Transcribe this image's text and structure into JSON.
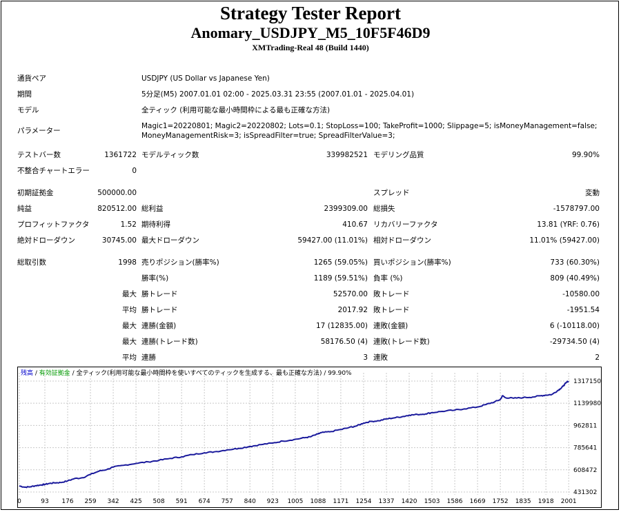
{
  "header": {
    "title": "Strategy Tester Report",
    "ea_name": "Anomary_USDJPY_M5_10F5F46D9",
    "server": "XMTrading-Real 48 (Build 1440)"
  },
  "info": {
    "symbol_label": "通貨ペア",
    "symbol_value": "USDJPY (US Dollar vs Japanese Yen)",
    "period_label": "期間",
    "period_value": "5分足(M5) 2007.01.01 02:00 - 2025.03.31 23:55 (2007.01.01 - 2025.04.01)",
    "model_label": "モデル",
    "model_value": "全ティック (利用可能な最小時間枠による最も正確な方法)",
    "params_label": "パラメーター",
    "params_line1": "Magic1=20220801; Magic2=20220802; Lots=0.1; StopLoss=100; TakeProfit=1000; Slippage=5; isMoneyManagement=false;",
    "params_line2": "MoneyManagementRisk=3; isSpreadFilter=true; SpreadFilterValue=3;"
  },
  "stats": {
    "bars_label": "テストバー数",
    "bars_value": "1361722",
    "ticks_label": "モデルティック数",
    "ticks_value": "339982521",
    "quality_label": "モデリング品質",
    "quality_value": "99.90%",
    "mismatch_label": "不整合チャートエラー",
    "mismatch_value": "0",
    "deposit_label": "初期証拠金",
    "deposit_value": "500000.00",
    "spread_label": "スプレッド",
    "spread_value": "変動",
    "netprofit_label": "純益",
    "netprofit_value": "820512.00",
    "grossprofit_label": "総利益",
    "grossprofit_value": "2399309.00",
    "grossloss_label": "総損失",
    "grossloss_value": "-1578797.00",
    "pf_label": "プロフィットファクタ",
    "pf_value": "1.52",
    "payoff_label": "期待利得",
    "payoff_value": "410.67",
    "recovery_label": "リカバリーファクタ",
    "recovery_value": "13.81 (YRF: 0.76)",
    "absdd_label": "絶対ドローダウン",
    "absdd_value": "30745.00",
    "maxdd_label": "最大ドローダウン",
    "maxdd_value": "59427.00 (11.01%)",
    "reldd_label": "相対ドローダウン",
    "reldd_value": "11.01% (59427.00)",
    "trades_label": "総取引数",
    "trades_value": "1998",
    "short_label": "売りポジション(勝率%)",
    "short_value": "1265 (59.05%)",
    "long_label": "買いポジション(勝率%)",
    "long_value": "733 (60.30%)",
    "winrate_label": "勝率(%)",
    "winrate_value": "1189 (59.51%)",
    "lossrate_label": "負率 (%)",
    "lossrate_value": "809 (40.49%)",
    "max_label": "最大",
    "avg_label": "平均",
    "largest_win_label": "勝トレード",
    "largest_win_value": "52570.00",
    "largest_loss_label": "敗トレード",
    "largest_loss_value": "-10580.00",
    "avg_win_label": "勝トレード",
    "avg_win_value": "2017.92",
    "avg_loss_label": "敗トレード",
    "avg_loss_value": "-1951.54",
    "cons_wins_money_label": "連勝(金額)",
    "cons_wins_money_value": "17 (12835.00)",
    "cons_loss_money_label": "連敗(金額)",
    "cons_loss_money_value": "6 (-10118.00)",
    "cons_profit_label": "連勝(トレード数)",
    "cons_profit_value": "58176.50 (4)",
    "cons_loss_label": "連敗(トレード数)",
    "cons_loss_value": "-29734.50 (4)",
    "avg_cons_wins_label": "連勝",
    "avg_cons_wins_value": "3",
    "avg_cons_loss_label": "連敗",
    "avg_cons_loss_value": "2"
  },
  "chart_legend": {
    "balance": "残高",
    "sep1": " / ",
    "equity": "有効証拠金",
    "sep2": " / ",
    "model": "全ティック(利用可能な最小時間枠を使いすべてのティックを生成する、最も正確な方法)",
    "quality": " / 99.90%"
  },
  "colors": {
    "balance_line": "#1a1a9c",
    "grid": "#c8c8c8",
    "equity_legend": "#009900",
    "balance_legend": "#0000cc"
  },
  "chart_data": {
    "type": "line",
    "x_ticks": [
      "0",
      "93",
      "176",
      "259",
      "342",
      "425",
      "508",
      "591",
      "674",
      "757",
      "840",
      "923",
      "1005",
      "1088",
      "1171",
      "1254",
      "1337",
      "1420",
      "1503",
      "1586",
      "1669",
      "1752",
      "1835",
      "1918",
      "2001"
    ],
    "y_ticks": [
      "1317150",
      "1139980",
      "962811",
      "785641",
      "608472",
      "431302"
    ],
    "xlim": [
      0,
      2003
    ],
    "ylim": [
      431302,
      1339000
    ],
    "grid": true,
    "series": [
      {
        "name": "残高",
        "x": [
          0,
          20,
          40,
          60,
          80,
          93,
          110,
          130,
          150,
          176,
          200,
          230,
          259,
          290,
          320,
          342,
          380,
          425,
          470,
          508,
          550,
          591,
          630,
          674,
          710,
          757,
          800,
          840,
          880,
          923,
          960,
          1000,
          1040,
          1060,
          1088,
          1100,
          1130,
          1171,
          1200,
          1230,
          1254,
          1280,
          1310,
          1337,
          1370,
          1400,
          1420,
          1450,
          1480,
          1503,
          1540,
          1586,
          1620,
          1669,
          1700,
          1730,
          1752,
          1760,
          1770,
          1800,
          1835,
          1870,
          1900,
          1918,
          1940,
          1960,
          1970,
          1980,
          1990,
          2000
        ],
        "y": [
          480000,
          470000,
          473000,
          482000,
          488000,
          492000,
          500000,
          505000,
          507000,
          520000,
          538000,
          545000,
          572000,
          598000,
          612000,
          630000,
          645000,
          660000,
          672000,
          684000,
          700000,
          712000,
          730000,
          745000,
          752000,
          768000,
          780000,
          795000,
          810000,
          822000,
          838000,
          850000,
          865000,
          872000,
          895000,
          905000,
          912000,
          930000,
          945000,
          960000,
          982000,
          995000,
          1000000,
          1015000,
          1025000,
          1035000,
          1045000,
          1050000,
          1055000,
          1065000,
          1075000,
          1085000,
          1095000,
          1110000,
          1130000,
          1150000,
          1170000,
          1200000,
          1185000,
          1180000,
          1185000,
          1190000,
          1200000,
          1205000,
          1210000,
          1240000,
          1255000,
          1275000,
          1300000,
          1317150
        ]
      }
    ]
  }
}
